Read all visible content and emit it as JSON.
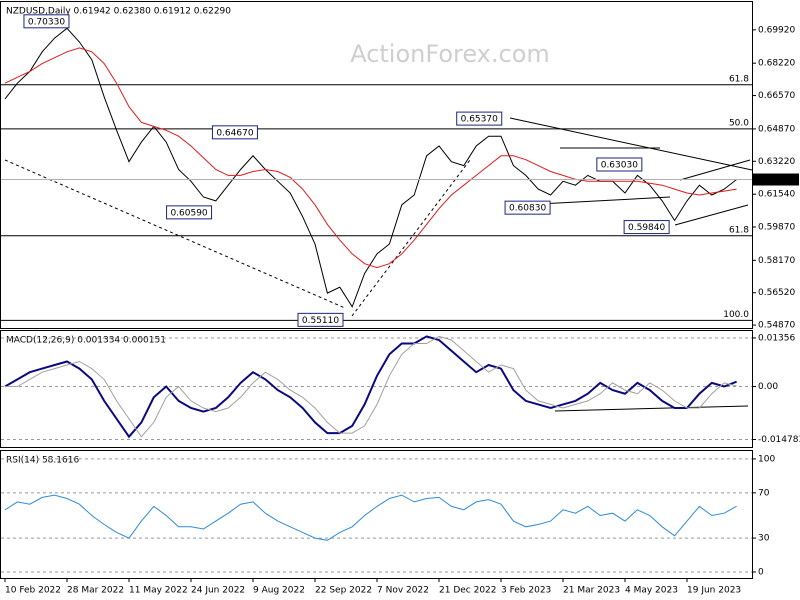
{
  "chart_data": [
    {
      "type": "line",
      "title": "NZDUSD,Daily  0.61942 0.62380 0.61912 0.62290",
      "watermark": "ActionForex.com",
      "xlim": [
        0,
        60
      ],
      "xticks": [
        {
          "value": 0,
          "label": "10 Feb 2022"
        },
        {
          "value": 5,
          "label": "28 Mar 2022"
        },
        {
          "value": 10,
          "label": "11 May 2022"
        },
        {
          "value": 15,
          "label": "24 Jun 2022"
        },
        {
          "value": 20,
          "label": "9 Aug 2022"
        },
        {
          "value": 25,
          "label": "22 Sep 2022"
        },
        {
          "value": 30,
          "label": "7 Nov 2022"
        },
        {
          "value": 35,
          "label": "21 Dec 2022"
        },
        {
          "value": 40,
          "label": "3 Feb 2023"
        },
        {
          "value": 45,
          "label": "21 Mar 2023"
        },
        {
          "value": 50,
          "label": "4 May 2023"
        },
        {
          "value": 55,
          "label": "19 Jun 2023"
        }
      ],
      "ylim": [
        0.5472,
        0.7134
      ],
      "yticks": [
        {
          "value": 0.6992,
          "label": "0.69920"
        },
        {
          "value": 0.6822,
          "label": "0.68220"
        },
        {
          "value": 0.6657,
          "label": "0.66570"
        },
        {
          "value": 0.6487,
          "label": "0.64870"
        },
        {
          "value": 0.6322,
          "label": "0.63220"
        },
        {
          "value": 0.6154,
          "label": "0.61540"
        },
        {
          "value": 0.5987,
          "label": "0.59870"
        },
        {
          "value": 0.5817,
          "label": "0.58170"
        },
        {
          "value": 0.5652,
          "label": "0.56520"
        },
        {
          "value": 0.5487,
          "label": "0.54870"
        }
      ],
      "grid": false,
      "series": [
        {
          "color": "#000000",
          "width": 1,
          "values": [
            0.664,
            0.672,
            0.678,
            0.688,
            0.695,
            0.7,
            0.693,
            0.684,
            0.665,
            0.648,
            0.632,
            0.642,
            0.65,
            0.642,
            0.628,
            0.622,
            0.614,
            0.612,
            0.62,
            0.628,
            0.635,
            0.628,
            0.622,
            0.616,
            0.604,
            0.59,
            0.565,
            0.568,
            0.558,
            0.575,
            0.585,
            0.59,
            0.61,
            0.615,
            0.635,
            0.64,
            0.632,
            0.63,
            0.64,
            0.645,
            0.645,
            0.63,
            0.625,
            0.618,
            0.615,
            0.622,
            0.62,
            0.625,
            0.622,
            0.622,
            0.616,
            0.625,
            0.62,
            0.612,
            0.602,
            0.612,
            0.62,
            0.615,
            0.618,
            0.6229
          ]
        },
        {
          "color": "#e31a1c",
          "width": 1,
          "values": [
            0.672,
            0.675,
            0.678,
            0.682,
            0.685,
            0.688,
            0.69,
            0.688,
            0.682,
            0.672,
            0.66,
            0.652,
            0.65,
            0.648,
            0.645,
            0.64,
            0.634,
            0.628,
            0.625,
            0.625,
            0.627,
            0.628,
            0.627,
            0.624,
            0.618,
            0.61,
            0.6,
            0.592,
            0.585,
            0.58,
            0.578,
            0.58,
            0.585,
            0.592,
            0.6,
            0.608,
            0.615,
            0.62,
            0.625,
            0.63,
            0.635,
            0.635,
            0.633,
            0.63,
            0.627,
            0.625,
            0.623,
            0.622,
            0.622,
            0.622,
            0.622,
            0.622,
            0.621,
            0.62,
            0.618,
            0.616,
            0.615,
            0.616,
            0.617,
            0.618
          ]
        }
      ],
      "annotations": [
        {
          "x": 5.4,
          "value": 0.7033,
          "label": "0.70330"
        },
        {
          "x": 20.6,
          "value": 0.6467,
          "label": "0.64670"
        },
        {
          "x": 16.9,
          "value": 0.6059,
          "label": "0.60590"
        },
        {
          "x": 27.5,
          "value": 0.5511,
          "label": "0.55110"
        },
        {
          "x": 40.3,
          "value": 0.6537,
          "label": "0.65370"
        },
        {
          "x": 51.6,
          "value": 0.6303,
          "label": "0.63030"
        },
        {
          "x": 44.2,
          "value": 0.6083,
          "label": "0.60830"
        },
        {
          "x": 53.8,
          "value": 0.5984,
          "label": "0.59840"
        }
      ],
      "fib_levels": [
        {
          "value": 0.6712,
          "label": "61.8"
        },
        {
          "value": 0.6487,
          "label": "50.0"
        },
        {
          "value": 0.5942,
          "label": "61.8"
        },
        {
          "value": 0.5511,
          "label": "100.0"
        }
      ],
      "last_label": "0.62290"
    },
    {
      "type": "line",
      "title": "MACD(12,26,9) 0.001334 0.000151",
      "xlim": [
        0,
        60
      ],
      "ylim": [
        -0.01688,
        0.0155
      ],
      "yticks": [
        0.01356,
        {
          "value": 0,
          "label": "0.00"
        },
        -0.014783
      ],
      "grid": true,
      "series": [
        {
          "color": "#0a0a80",
          "width": 2,
          "values": [
            0.0,
            0.002,
            0.004,
            0.005,
            0.006,
            0.007,
            0.005,
            0.002,
            -0.004,
            -0.009,
            -0.014,
            -0.01,
            -0.003,
            0.0,
            -0.004,
            -0.006,
            -0.007,
            -0.006,
            -0.003,
            0.001,
            0.004,
            0.002,
            -0.001,
            -0.003,
            -0.006,
            -0.01,
            -0.013,
            -0.013,
            -0.011,
            -0.005,
            0.003,
            0.009,
            0.012,
            0.012,
            0.014,
            0.013,
            0.01,
            0.007,
            0.004,
            0.006,
            0.005,
            -0.001,
            -0.004,
            -0.005,
            -0.006,
            -0.005,
            -0.004,
            -0.002,
            0.001,
            -0.001,
            -0.002,
            0.001,
            -0.001,
            -0.004,
            -0.006,
            -0.006,
            -0.002,
            0.001,
            0.0,
            0.001334
          ]
        },
        {
          "color": "#a0a0a0",
          "width": 1,
          "values": [
            0.0,
            0.0,
            0.002,
            0.004,
            0.005,
            0.006,
            0.007,
            0.005,
            0.002,
            -0.004,
            -0.009,
            -0.014,
            -0.01,
            -0.003,
            0.0,
            -0.004,
            -0.006,
            -0.007,
            -0.006,
            -0.003,
            0.001,
            0.004,
            0.002,
            -0.001,
            -0.003,
            -0.006,
            -0.01,
            -0.013,
            -0.013,
            -0.011,
            -0.005,
            0.003,
            0.009,
            0.012,
            0.012,
            0.014,
            0.013,
            0.01,
            0.007,
            0.004,
            0.006,
            0.005,
            -0.001,
            -0.004,
            -0.005,
            -0.006,
            -0.005,
            -0.004,
            -0.002,
            0.001,
            -0.001,
            -0.002,
            0.001,
            -0.001,
            -0.004,
            -0.006,
            -0.006,
            -0.002,
            0.001,
            0.000151
          ]
        }
      ]
    },
    {
      "type": "line",
      "title": "RSI(14) 58.1616",
      "xlim": [
        0,
        60
      ],
      "ylim": [
        -5.3,
        107
      ],
      "yticks": [
        100,
        70,
        30,
        0
      ],
      "grid": true,
      "series": [
        {
          "color": "#2e8bd8",
          "width": 1,
          "values": [
            55,
            62,
            60,
            66,
            68,
            65,
            60,
            50,
            42,
            35,
            30,
            45,
            58,
            50,
            40,
            40,
            38,
            45,
            52,
            60,
            62,
            52,
            45,
            40,
            35,
            30,
            28,
            35,
            40,
            50,
            58,
            65,
            68,
            62,
            65,
            66,
            58,
            55,
            62,
            64,
            60,
            45,
            40,
            42,
            45,
            55,
            52,
            58,
            50,
            52,
            45,
            55,
            50,
            40,
            32,
            45,
            58,
            50,
            52,
            58.1616
          ]
        }
      ]
    }
  ]
}
